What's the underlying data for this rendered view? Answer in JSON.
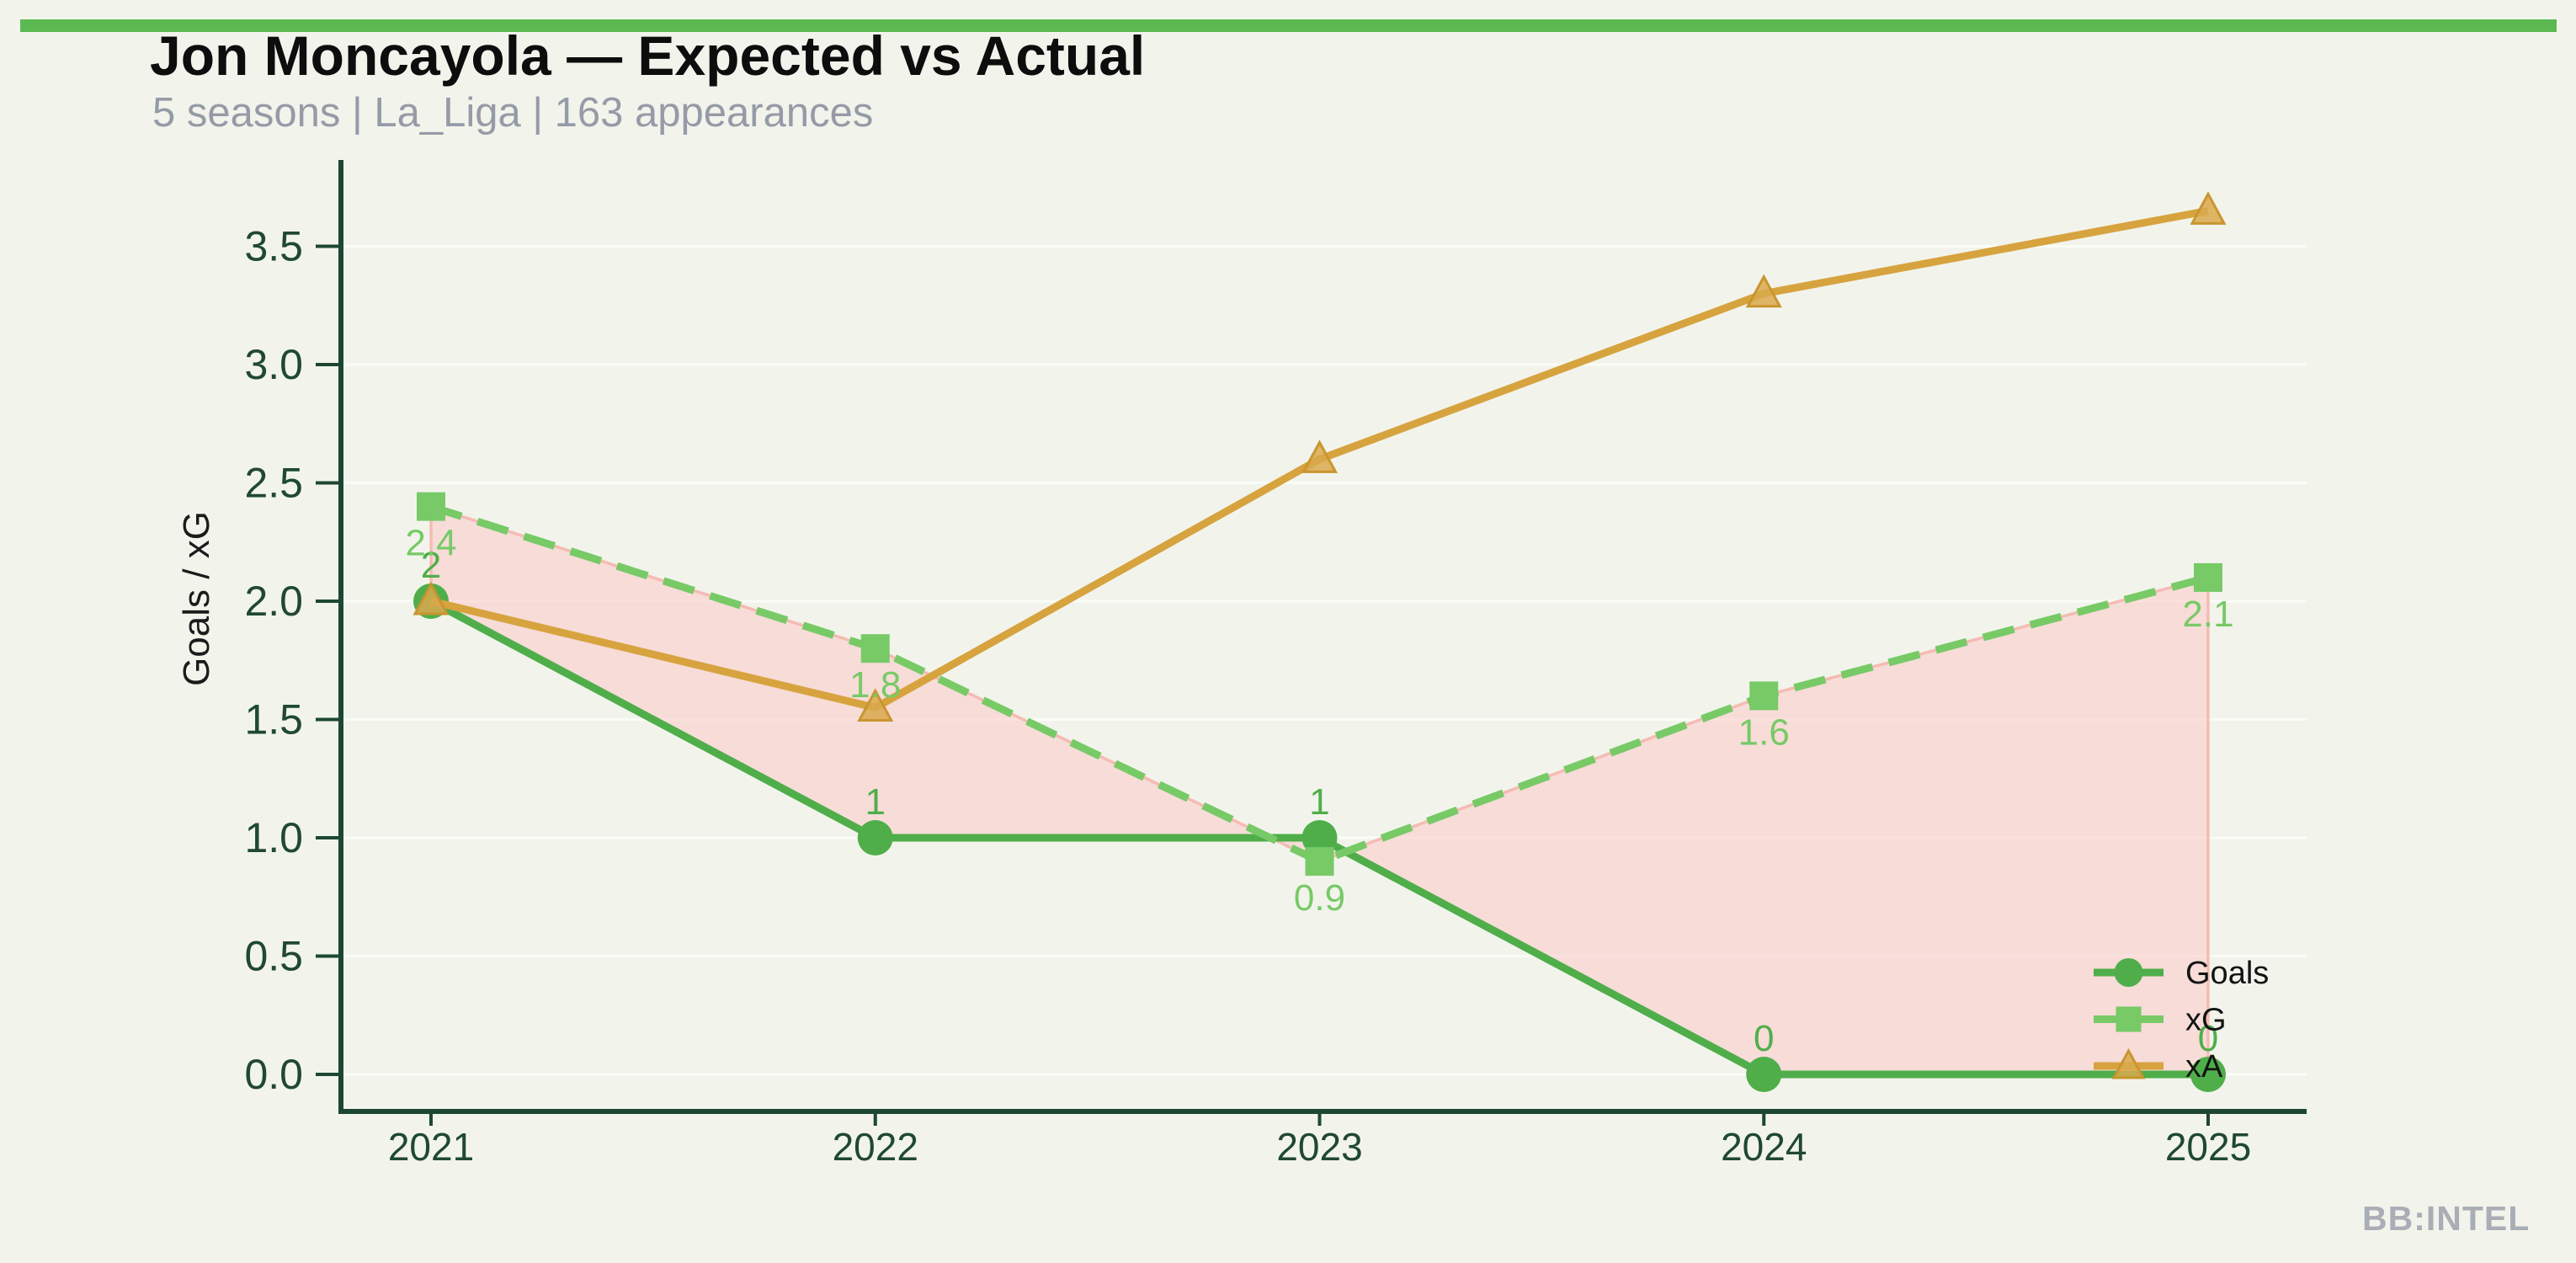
{
  "page": {
    "background": "#f2f4ec",
    "accent_bar_color": "#5cb951",
    "title_color": "#0d0d0d",
    "subtitle_color": "#959ba6",
    "brand_color": "#a9aeb6"
  },
  "header": {
    "title": "Jon Moncayola — Expected vs Actual",
    "subtitle": "5 seasons | La_Liga | 163 appearances"
  },
  "footer": {
    "brand": "BB:INTEL"
  },
  "chart_data": {
    "type": "line",
    "title": "",
    "xlabel": "",
    "ylabel": "Goals / xG",
    "x_labels": [
      "2021",
      "2022",
      "2023",
      "2024",
      "2025"
    ],
    "series": [
      {
        "name": "Goals",
        "values": [
          2,
          1,
          1,
          0,
          0
        ],
        "labels": [
          "2",
          "1",
          "1",
          "0",
          "0"
        ],
        "label_position": "above",
        "color": "#4fae4a",
        "label_color": "#4fae4a",
        "marker": "circle",
        "line_style": "solid"
      },
      {
        "name": "xG",
        "values": [
          2.4,
          1.8,
          0.9,
          1.6,
          2.1
        ],
        "labels": [
          "2.4",
          "1.8",
          "0.9",
          "1.6",
          "2.1"
        ],
        "label_position": "below",
        "color": "#77ca66",
        "label_color": "#77ca66",
        "marker": "square",
        "line_style": "dashed"
      },
      {
        "name": "xA",
        "values": [
          2.0,
          1.55,
          2.6,
          3.3,
          3.65
        ],
        "labels": [],
        "label_position": "none",
        "color": "#d7a33f",
        "label_color": "#d7a33f",
        "marker": "triangle",
        "line_style": "solid",
        "marker_edge_color": "#c9952e",
        "marker_fill_color": "#d9a94e"
      }
    ],
    "fill_between": {
      "series_a": "Goals",
      "series_b": "xG",
      "fill_color": "rgba(252,196,196,0.5)",
      "edge_color": "rgba(244,176,168,0.8)"
    },
    "yticks": [
      0.0,
      0.5,
      1.0,
      1.5,
      2.0,
      2.5,
      3.0,
      3.5
    ],
    "ytick_labels": [
      "0.0",
      "0.5",
      "1.0",
      "1.5",
      "2.0",
      "2.5",
      "3.0",
      "3.5"
    ],
    "ylim": [
      0,
      3.86
    ],
    "grid": true,
    "grid_color": "#fafcf6",
    "axis_color": "#1d4732",
    "tick_label_color": "#20492f",
    "ylabel_color": "#1b1b1b",
    "legend_position": "lower right",
    "legend_text_color": "#131313"
  }
}
